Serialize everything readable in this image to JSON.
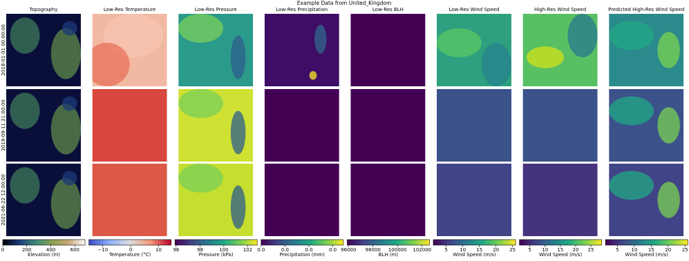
{
  "chart_data": {
    "type": "image-grid",
    "title": "Example Data from United_Kingdom",
    "row_labels": [
      "2018-01-01 00:00:00",
      "2019-09-11 21:00:00",
      "2021-06-22 12:00:00"
    ],
    "panels": [
      {
        "title": "Topography",
        "colorbar_label": "Elevation (m)",
        "cmap": "gist_earth",
        "xlim": [
          0,
          685
        ],
        "xticks": [
          0,
          200,
          400,
          600
        ]
      },
      {
        "title": "Low-Res Temperature",
        "colorbar_label": "Temperature (°C)",
        "cmap": "coolwarm",
        "xlim": [
          -15,
          14.5
        ],
        "xticks": [
          {
            "value": -10,
            "label": "−10"
          },
          0,
          10
        ]
      },
      {
        "title": "Low-Res Pressure",
        "colorbar_label": "Pressure (kPa)",
        "cmap": "viridis",
        "xlim": [
          95.9,
          102.8
        ],
        "xticks": [
          96,
          98,
          100,
          102
        ]
      },
      {
        "title": "Low-Res Precipitation",
        "colorbar_label": "Precipitation (mm)",
        "cmap": "viridis",
        "xlim": [
          0,
          0.0344
        ],
        "xticks": [
          {
            "value": 0,
            "label": "0.0"
          },
          {
            "value": 0.01,
            "label": "0.0"
          },
          {
            "value": 0.02,
            "label": "0.0"
          },
          {
            "value": 0.03,
            "label": "0.0"
          }
        ]
      },
      {
        "title": "Low-Res BLH",
        "colorbar_label": "BLH (m)",
        "cmap": "viridis",
        "xlim": [
          95900,
          102600
        ],
        "xticks": [
          96000,
          98000,
          100000,
          102000
        ]
      },
      {
        "title": "Low-Res Wind Speed",
        "colorbar_label": "Wind Speed (m/s)",
        "cmap": "viridis",
        "xlim": [
          1.1,
          25.9
        ],
        "xticks": [
          5,
          10,
          15,
          20,
          25
        ]
      },
      {
        "title": "High-Res Wind Speed",
        "colorbar_label": "Wind Speed (m/s)",
        "cmap": "viridis",
        "xlim": [
          1.6,
          28.5
        ],
        "xticks": [
          5,
          10,
          15,
          20,
          25
        ]
      },
      {
        "title": "Predicted High-Res Wind Speed",
        "colorbar_label": "Wind Speed (m/s)",
        "cmap": "viridis",
        "xlim": [
          1.5,
          25.8
        ],
        "xticks": [
          5,
          10,
          15,
          20,
          25
        ]
      }
    ]
  }
}
